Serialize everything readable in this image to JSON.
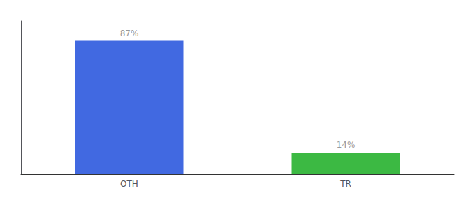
{
  "chart_data": {
    "type": "bar",
    "categories": [
      "OTH",
      "TR"
    ],
    "values": [
      87,
      14
    ],
    "colors": [
      "#4169E1",
      "#3CB943"
    ],
    "value_labels": [
      "87%",
      "14%"
    ],
    "data_labels": true,
    "ylim": [
      0,
      100
    ],
    "grid": false,
    "tick_labels": "x"
  }
}
